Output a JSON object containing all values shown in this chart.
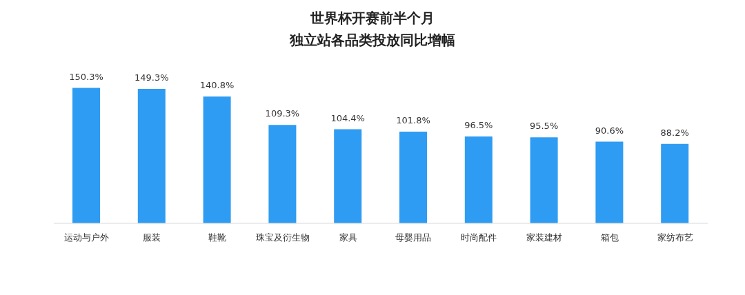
{
  "chart_data": {
    "type": "bar",
    "title": "世界杯开赛前半个月",
    "subtitle": "独立站各品类投放同比增幅",
    "categories": [
      "运动与户外",
      "服装",
      "鞋靴",
      "珠宝及衍生物",
      "家具",
      "母婴用品",
      "时尚配件",
      "家装建材",
      "箱包",
      "家纺布艺"
    ],
    "values": [
      150.3,
      149.3,
      140.8,
      109.3,
      104.4,
      101.8,
      96.5,
      95.5,
      90.6,
      88.2
    ],
    "value_labels": [
      "150.3%",
      "149.3%",
      "140.8%",
      "109.3%",
      "104.4%",
      "101.8%",
      "96.5%",
      "95.5%",
      "90.6%",
      "88.2%"
    ],
    "color": "#2e9cf2",
    "grid": false,
    "legend": false
  }
}
